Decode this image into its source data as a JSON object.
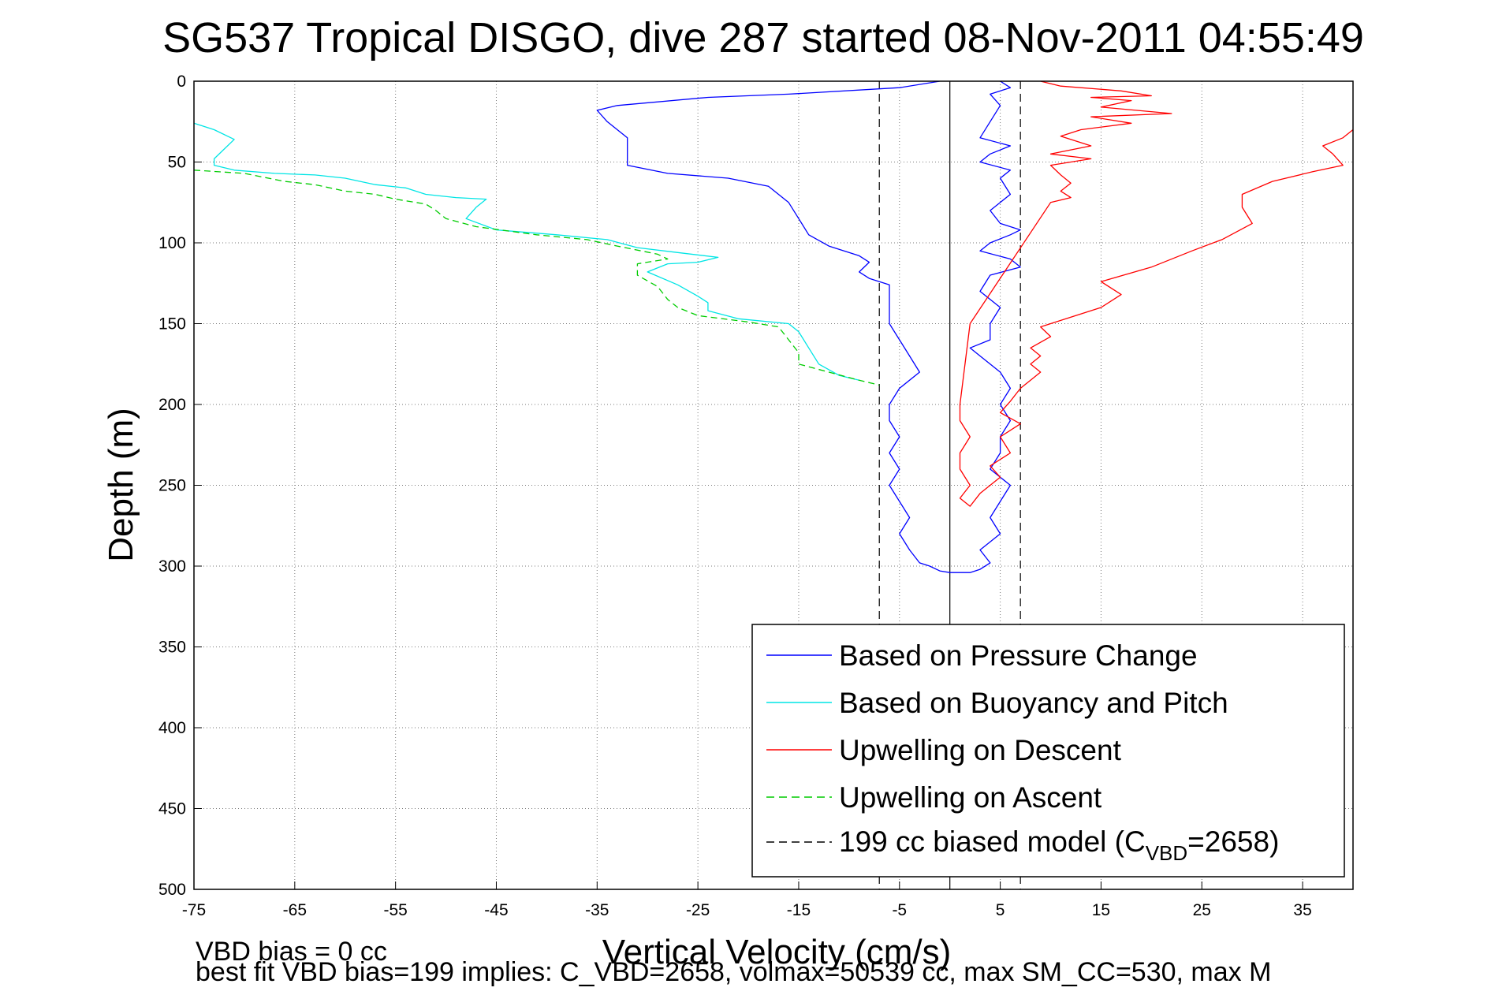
{
  "chart_data": {
    "type": "line",
    "title": "SG537 Tropical DISGO, dive 287 started 08-Nov-2011 04:55:49",
    "xlabel": "Vertical Velocity (cm/s)",
    "ylabel": "Depth (m)",
    "xlim": [
      -75,
      40
    ],
    "ylim": [
      500,
      0
    ],
    "y_reversed": true,
    "grid": true,
    "xticks": [
      -75,
      -65,
      -55,
      -45,
      -35,
      -25,
      -15,
      -5,
      5,
      15,
      25,
      35
    ],
    "yticks": [
      0,
      50,
      100,
      150,
      200,
      250,
      300,
      350,
      400,
      450,
      500
    ],
    "legend_position": "bottom-right",
    "footnote_line1": "VBD bias = 0 cc",
    "footnote_line2": "best fit VBD bias=199 implies: C_VBD=2658, volmax=50539 cc, max SM_CC=530, max M",
    "reference_lines": {
      "zero_x": 0,
      "model_left_x": -7,
      "model_right_x": 7
    },
    "series": [
      {
        "name": "Based on Pressure Change",
        "color": "#0000ff",
        "style": "solid",
        "points": [
          [
            -1,
            0
          ],
          [
            -5,
            4
          ],
          [
            -16,
            8
          ],
          [
            -24,
            10
          ],
          [
            -33,
            15
          ],
          [
            -35,
            18
          ],
          [
            -34,
            25
          ],
          [
            -32,
            35
          ],
          [
            -32,
            45
          ],
          [
            -32,
            52
          ],
          [
            -28,
            57
          ],
          [
            -22,
            60
          ],
          [
            -18,
            65
          ],
          [
            -16,
            75
          ],
          [
            -15,
            85
          ],
          [
            -14,
            95
          ],
          [
            -12,
            102
          ],
          [
            -9,
            108
          ],
          [
            -8,
            112
          ],
          [
            -9,
            118
          ],
          [
            -8,
            122
          ],
          [
            -6,
            126
          ],
          [
            -6,
            140
          ],
          [
            -6,
            150
          ],
          [
            -5,
            160
          ],
          [
            -4,
            170
          ],
          [
            -3,
            180
          ],
          [
            -5,
            190
          ],
          [
            -6,
            200
          ],
          [
            -6,
            210
          ],
          [
            -5,
            220
          ],
          [
            -6,
            230
          ],
          [
            -5,
            240
          ],
          [
            -6,
            250
          ],
          [
            -5,
            260
          ],
          [
            -4,
            270
          ],
          [
            -5,
            280
          ],
          [
            -4,
            290
          ],
          [
            -3,
            298
          ],
          [
            -2,
            300
          ],
          [
            -1,
            303
          ],
          [
            0,
            304
          ],
          [
            2,
            304
          ],
          [
            3,
            302
          ],
          [
            4,
            298
          ],
          [
            3,
            290
          ],
          [
            5,
            280
          ],
          [
            4,
            270
          ],
          [
            5,
            260
          ],
          [
            6,
            250
          ],
          [
            4,
            240
          ],
          [
            5,
            230
          ],
          [
            5,
            220
          ],
          [
            6,
            210
          ],
          [
            5,
            200
          ],
          [
            6,
            190
          ],
          [
            5,
            180
          ],
          [
            3,
            170
          ],
          [
            2,
            165
          ],
          [
            4,
            160
          ],
          [
            4,
            150
          ],
          [
            5,
            140
          ],
          [
            3,
            130
          ],
          [
            4,
            120
          ],
          [
            7,
            115
          ],
          [
            6,
            110
          ],
          [
            3,
            105
          ],
          [
            4,
            100
          ],
          [
            6,
            95
          ],
          [
            7,
            92
          ],
          [
            5,
            88
          ],
          [
            4,
            80
          ],
          [
            6,
            70
          ],
          [
            5,
            60
          ],
          [
            6,
            55
          ],
          [
            3,
            50
          ],
          [
            4,
            45
          ],
          [
            6,
            40
          ],
          [
            3,
            35
          ],
          [
            4,
            25
          ],
          [
            5,
            15
          ],
          [
            4,
            8
          ],
          [
            6,
            4
          ],
          [
            5,
            0
          ]
        ]
      },
      {
        "name": "Based on Buoyancy and Pitch",
        "color": "#00e5e5",
        "style": "solid",
        "points": [
          [
            -75,
            26
          ],
          [
            -73,
            30
          ],
          [
            -71,
            36
          ],
          [
            -72,
            42
          ],
          [
            -73,
            48
          ],
          [
            -73,
            52
          ],
          [
            -71,
            55
          ],
          [
            -67,
            57
          ],
          [
            -63,
            58
          ],
          [
            -60,
            60
          ],
          [
            -57,
            64
          ],
          [
            -54,
            66
          ],
          [
            -52,
            70
          ],
          [
            -49,
            72
          ],
          [
            -46,
            73
          ],
          [
            -47,
            78
          ],
          [
            -48,
            85
          ],
          [
            -45,
            92
          ],
          [
            -39,
            95
          ],
          [
            -34,
            98
          ],
          [
            -31,
            103
          ],
          [
            -27,
            106
          ],
          [
            -23,
            109
          ],
          [
            -25,
            112
          ],
          [
            -28,
            113
          ],
          [
            -30,
            118
          ],
          [
            -27,
            126
          ],
          [
            -25,
            133
          ],
          [
            -24,
            137
          ],
          [
            -24,
            142
          ],
          [
            -21,
            147
          ],
          [
            -16,
            150
          ],
          [
            -15,
            155
          ],
          [
            -14,
            165
          ],
          [
            -13,
            175
          ],
          [
            -11,
            182
          ],
          [
            -9,
            185
          ]
        ]
      },
      {
        "name": "Upwelling on Descent",
        "color": "#ff0000",
        "style": "solid",
        "points": [
          [
            9,
            0
          ],
          [
            11,
            3
          ],
          [
            17,
            6
          ],
          [
            20,
            9
          ],
          [
            14,
            10
          ],
          [
            18,
            12
          ],
          [
            15,
            16
          ],
          [
            22,
            20
          ],
          [
            14,
            22
          ],
          [
            18,
            26
          ],
          [
            13,
            30
          ],
          [
            11,
            34
          ],
          [
            14,
            40
          ],
          [
            10,
            45
          ],
          [
            14,
            48
          ],
          [
            10,
            52
          ],
          [
            11,
            58
          ],
          [
            12,
            63
          ],
          [
            11,
            68
          ],
          [
            12,
            72
          ],
          [
            10,
            75
          ],
          [
            2,
            150
          ],
          [
            1,
            200
          ],
          [
            1,
            210
          ],
          [
            2,
            220
          ],
          [
            1,
            230
          ],
          [
            1,
            240
          ],
          [
            2,
            250
          ],
          [
            1,
            258
          ],
          [
            2,
            263
          ],
          [
            3,
            255
          ],
          [
            5,
            245
          ],
          [
            4,
            238
          ],
          [
            6,
            230
          ],
          [
            5,
            220
          ],
          [
            7,
            212
          ],
          [
            5,
            205
          ],
          [
            6,
            198
          ],
          [
            7,
            190
          ],
          [
            8,
            185
          ],
          [
            9,
            180
          ],
          [
            8,
            175
          ],
          [
            9,
            170
          ],
          [
            8,
            165
          ],
          [
            10,
            158
          ],
          [
            9,
            152
          ],
          [
            11,
            148
          ],
          [
            15,
            140
          ],
          [
            17,
            132
          ],
          [
            15,
            124
          ],
          [
            20,
            115
          ],
          [
            24,
            105
          ],
          [
            27,
            98
          ],
          [
            30,
            88
          ],
          [
            29,
            78
          ],
          [
            29,
            70
          ],
          [
            32,
            62
          ],
          [
            36,
            56
          ],
          [
            39,
            52
          ],
          [
            38,
            45
          ],
          [
            37,
            40
          ],
          [
            39,
            35
          ],
          [
            40,
            30
          ]
        ]
      },
      {
        "name": "Upwelling on Ascent",
        "color": "#00cc00",
        "style": "dashed",
        "points": [
          [
            -75,
            55
          ],
          [
            -70,
            57
          ],
          [
            -66,
            62
          ],
          [
            -63,
            64
          ],
          [
            -60,
            68
          ],
          [
            -57,
            70
          ],
          [
            -55,
            73
          ],
          [
            -52,
            76
          ],
          [
            -51,
            80
          ],
          [
            -50,
            85
          ],
          [
            -47,
            90
          ],
          [
            -41,
            95
          ],
          [
            -36,
            98
          ],
          [
            -33,
            102
          ],
          [
            -29,
            107
          ],
          [
            -28,
            110
          ],
          [
            -31,
            113
          ],
          [
            -31,
            120
          ],
          [
            -29,
            127
          ],
          [
            -28,
            135
          ],
          [
            -27,
            140
          ],
          [
            -25,
            145
          ],
          [
            -20,
            149
          ],
          [
            -17,
            152
          ],
          [
            -16,
            160
          ],
          [
            -15,
            168
          ],
          [
            -15,
            175
          ],
          [
            -12,
            180
          ],
          [
            -9,
            185
          ],
          [
            -7,
            188
          ]
        ]
      },
      {
        "name": "199 cc biased model (C_VBD=2658)",
        "color": "#000000",
        "style": "dashed",
        "points": [
          [
            -7,
            0
          ],
          [
            -7,
            500
          ]
        ]
      }
    ]
  },
  "legend": {
    "items": [
      {
        "label": "Based on Pressure Change",
        "color": "#0000ff",
        "dash": ""
      },
      {
        "label": "Based on Buoyancy and Pitch",
        "color": "#00e5e5",
        "dash": ""
      },
      {
        "label": "Upwelling on Descent",
        "color": "#ff0000",
        "dash": ""
      },
      {
        "label": "Upwelling on Ascent",
        "color": "#00cc00",
        "dash": "10,6"
      }
    ],
    "model_label_prefix": "199 cc biased model (C",
    "model_label_sub": "VBD",
    "model_label_suffix": "=2658)",
    "model_color": "#000000",
    "model_dash": "10,6"
  }
}
